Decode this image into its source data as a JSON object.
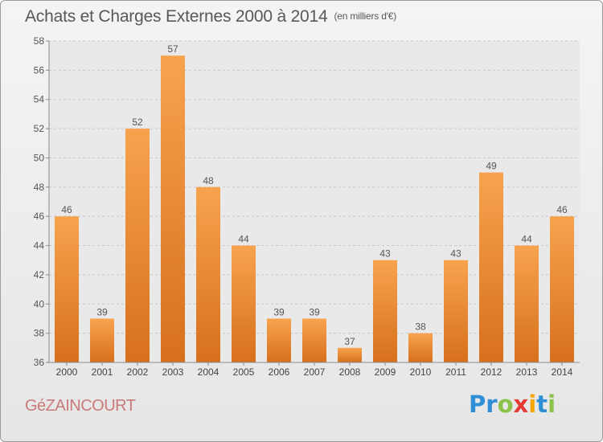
{
  "title": "Achats et Charges Externes 2000 à 2014",
  "unit_note": "(en milliers d'€)",
  "place_name": "GéZAINCOURT",
  "logo": {
    "letters": [
      "P",
      "r",
      "o",
      "x",
      "i",
      "t",
      "i"
    ],
    "colors": [
      "#2f8fd6",
      "#2f8fd6",
      "#8bc34a",
      "#e53935",
      "#f7a600",
      "#2f8fd6",
      "#8bc34a"
    ]
  },
  "chart_data": {
    "type": "bar",
    "categories": [
      "2000",
      "2001",
      "2002",
      "2003",
      "2004",
      "2005",
      "2006",
      "2007",
      "2008",
      "2009",
      "2010",
      "2011",
      "2012",
      "2013",
      "2014"
    ],
    "values": [
      46,
      39,
      52,
      57,
      48,
      44,
      39,
      39,
      37,
      43,
      38,
      43,
      49,
      44,
      46
    ],
    "ylim": [
      36,
      58
    ],
    "yticks": [
      36,
      38,
      40,
      42,
      44,
      46,
      48,
      50,
      52,
      54,
      56,
      58
    ],
    "grid": true,
    "bar_color_top": "#f7a34e",
    "bar_color_bottom": "#d7701c"
  }
}
